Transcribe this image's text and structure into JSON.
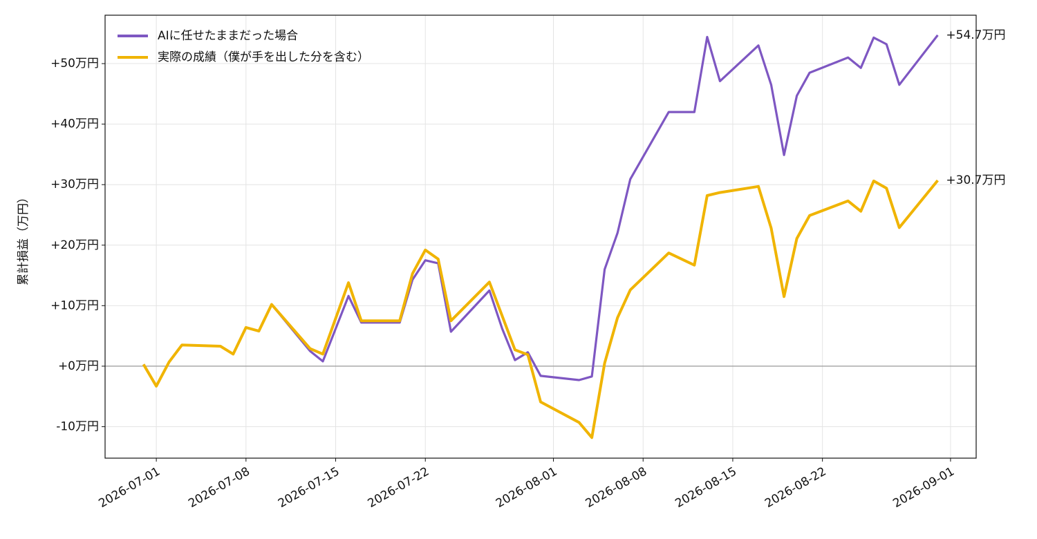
{
  "chart_data": {
    "type": "line",
    "y_label": "累計損益（万円）",
    "x": [
      "2026-06-30",
      "2026-07-01",
      "2026-07-02",
      "2026-07-03",
      "2026-07-06",
      "2026-07-07",
      "2026-07-08",
      "2026-07-09",
      "2026-07-10",
      "2026-07-13",
      "2026-07-14",
      "2026-07-16",
      "2026-07-17",
      "2026-07-20",
      "2026-07-21",
      "2026-07-22",
      "2026-07-23",
      "2026-07-24",
      "2026-07-27",
      "2026-07-28",
      "2026-07-29",
      "2026-07-30",
      "2026-07-31",
      "2026-08-03",
      "2026-08-04",
      "2026-08-05",
      "2026-08-06",
      "2026-08-07",
      "2026-08-10",
      "2026-08-12",
      "2026-08-13",
      "2026-08-14",
      "2026-08-17",
      "2026-08-18",
      "2026-08-19",
      "2026-08-20",
      "2026-08-21",
      "2026-08-24",
      "2026-08-25",
      "2026-08-26",
      "2026-08-27",
      "2026-08-28",
      "2026-08-31"
    ],
    "series": [
      {
        "name": "AIに任せたままだった場合",
        "color": "#7e57c2",
        "label_color": "#7e57c2",
        "end_label": "+54.7万円",
        "values": [
          0.3,
          -3.3,
          0.7,
          3.5,
          3.3,
          2.0,
          6.4,
          5.8,
          10.2,
          2.5,
          0.8,
          11.6,
          7.2,
          7.2,
          14.3,
          17.5,
          17.0,
          5.7,
          12.5,
          6.2,
          1.0,
          2.3,
          -1.6,
          -2.3,
          -1.7,
          16.0,
          22.0,
          30.9,
          42.0,
          42.0,
          54.4,
          47.1,
          53.0,
          46.5,
          34.9,
          44.7,
          48.5,
          51.0,
          49.3,
          54.3,
          53.2,
          46.5,
          54.7
        ]
      },
      {
        "name": "実際の成績（僕が手を出した分を含む）",
        "color": "#f0b400",
        "label_color": "#c99a00",
        "end_label": "+30.7万円",
        "values": [
          0.3,
          -3.3,
          0.7,
          3.5,
          3.3,
          2.0,
          6.4,
          5.8,
          10.2,
          2.9,
          2.0,
          13.8,
          7.5,
          7.5,
          15.3,
          19.2,
          17.7,
          7.5,
          13.9,
          8.3,
          2.7,
          1.9,
          -5.9,
          -9.3,
          -11.8,
          0.5,
          8.0,
          12.6,
          18.7,
          16.7,
          28.2,
          28.7,
          29.7,
          22.8,
          11.5,
          21.1,
          24.9,
          27.3,
          25.6,
          30.6,
          29.4,
          22.9,
          30.7
        ]
      }
    ],
    "xlim": [
      "2026-06-27",
      "2026-09-03"
    ],
    "xticks": [
      "2026-07-01",
      "2026-07-08",
      "2026-07-15",
      "2026-07-22",
      "2026-08-01",
      "2026-08-08",
      "2026-08-15",
      "2026-08-22",
      "2026-09-01"
    ],
    "ylim": [
      -15.2,
      58
    ],
    "yticks": [
      {
        "value": -10,
        "label": "-10万円"
      },
      {
        "value": 0,
        "label": "+0万円"
      },
      {
        "value": 10,
        "label": "+10万円"
      },
      {
        "value": 20,
        "label": "+20万円"
      },
      {
        "value": 30,
        "label": "+30万円"
      },
      {
        "value": 40,
        "label": "+40万円"
      },
      {
        "value": 50,
        "label": "+50万円"
      }
    ],
    "grid": true,
    "legend": "upper-left"
  }
}
